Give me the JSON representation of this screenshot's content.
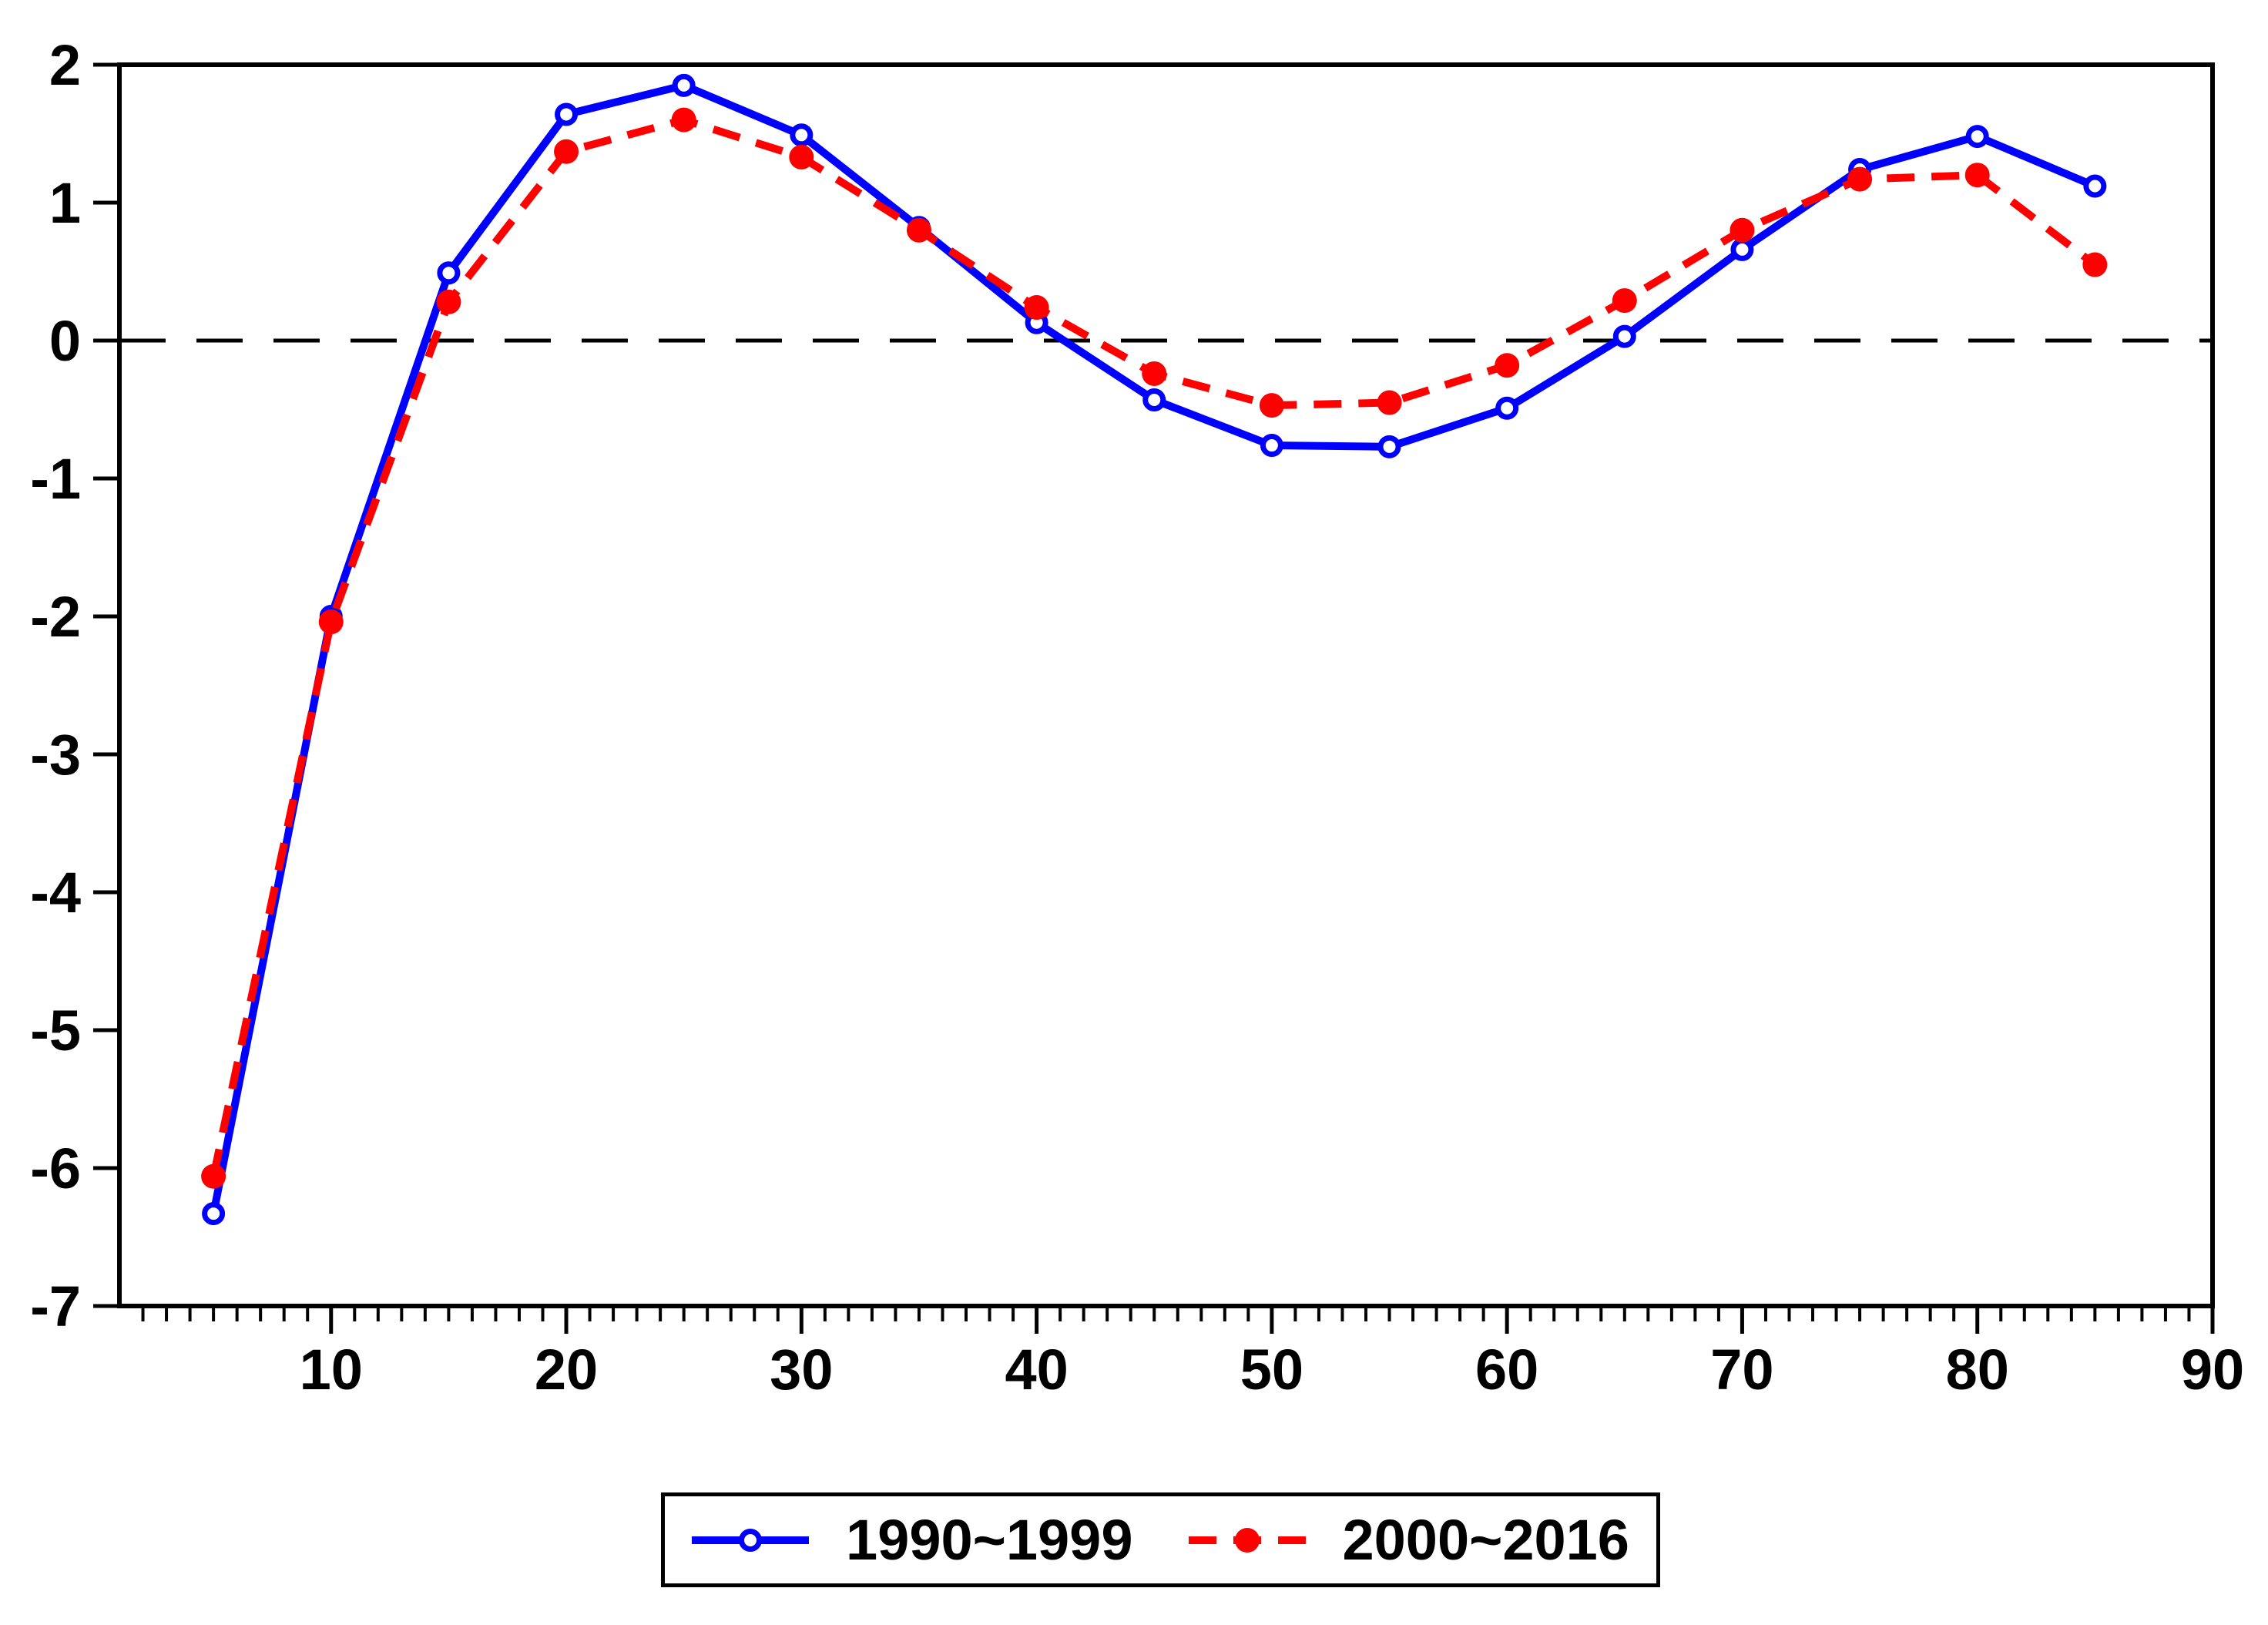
{
  "chart_data": {
    "type": "line",
    "x": [
      5,
      10,
      15,
      20,
      25,
      30,
      35,
      40,
      45,
      50,
      55,
      60,
      65,
      70,
      75,
      80,
      85
    ],
    "series": [
      {
        "name": "1990~1999",
        "color": "#0000ff",
        "line_style": "solid",
        "marker": "open-circle",
        "values": [
          -6.33,
          -2.0,
          0.49,
          1.64,
          1.85,
          1.49,
          0.82,
          0.13,
          -0.43,
          -0.76,
          -0.77,
          -0.49,
          0.03,
          0.66,
          1.24,
          1.48,
          1.12
        ]
      },
      {
        "name": "2000~2016",
        "color": "#ff0000",
        "line_style": "dashed",
        "marker": "filled-circle",
        "values": [
          -6.06,
          -2.04,
          0.28,
          1.37,
          1.6,
          1.33,
          0.8,
          0.24,
          -0.24,
          -0.47,
          -0.45,
          -0.18,
          0.29,
          0.8,
          1.17,
          1.2,
          0.55
        ]
      }
    ],
    "title": "",
    "xlabel": "",
    "ylabel": "",
    "xlim": [
      1,
      90
    ],
    "ylim": [
      -7,
      2
    ],
    "xticks": [
      10,
      20,
      30,
      40,
      50,
      60,
      70,
      80,
      90
    ],
    "yticks": [
      2,
      1,
      0,
      -1,
      -2,
      -3,
      -4,
      -5,
      -6,
      -7
    ],
    "x_minor_tick_step": 1,
    "zero_line": true,
    "grid": false,
    "axis_color": "#000000",
    "background": "#ffffff",
    "legend_position": "bottom-center"
  }
}
